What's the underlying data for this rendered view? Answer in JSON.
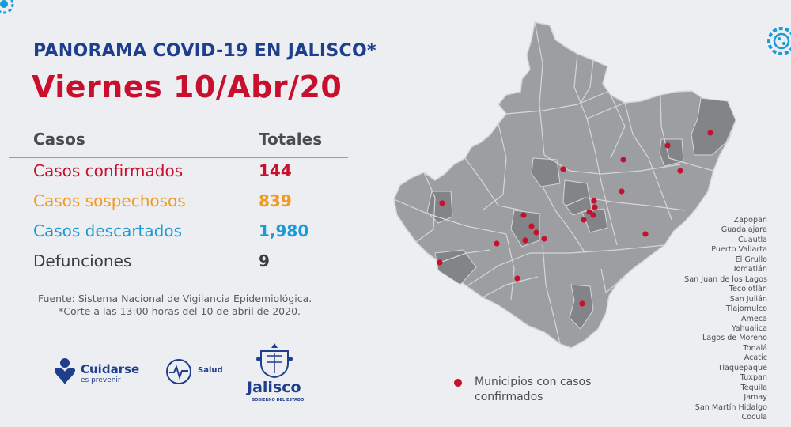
{
  "header": {
    "title_line1": "PANORAMA COVID-19 EN JALISCO*",
    "title_line2": "Viernes 10/Abr/20"
  },
  "table": {
    "col_casos": "Casos",
    "col_totales": "Totales",
    "rows": [
      {
        "label": "Casos confirmados",
        "value": "144",
        "color": "#c8102e"
      },
      {
        "label": "Casos sospechosos",
        "value": "839",
        "color": "#f39a1e"
      },
      {
        "label": "Casos descartados",
        "value": "1,980",
        "color": "#1a9ad8"
      },
      {
        "label": "Defunciones",
        "value": "9",
        "color": "#3a3c40"
      }
    ]
  },
  "source": {
    "line1": "Fuente: Sistema Nacional de Vigilancia Epidemiológica.",
    "line2": "*Corte a las 13:00 horas del 10 de abril de 2020."
  },
  "logos": {
    "cuidarse": "Cuidarse",
    "cuidarse_sub": "es prevenir",
    "salud": "Salud",
    "jalisco": "Jalisco",
    "jalisco_sub": "GOBIERNO DEL ESTADO"
  },
  "legend": {
    "label": "Municipios con casos confirmados",
    "dot_color": "#c8102e"
  },
  "municipalities": [
    "Zapopan",
    "Guadalajara",
    "Cuautla",
    "Puerto Vallarta",
    "El Grullo",
    "Tomatlán",
    "San Juan de los Lagos",
    "Tecolotlán",
    "San Julián",
    "Tlajomulco",
    "Ameca",
    "Yahualica",
    "Lagos de Moreno",
    "Tonalá",
    "Acatic",
    "Tlaquepaque",
    "Tuxpan",
    "Tequila",
    "Jamay",
    "San Martín Hidalgo",
    "Cocula"
  ],
  "map_colors": {
    "base": "#9c9ea2",
    "highlight": "#828488",
    "border": "#d4d6d9",
    "dot": "#c8102e"
  }
}
